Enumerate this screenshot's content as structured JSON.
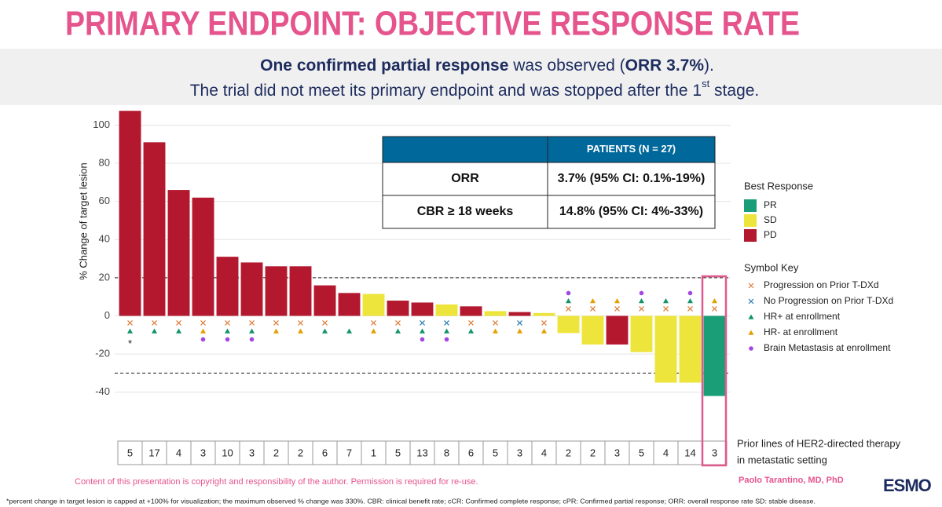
{
  "header": {
    "title": "PRIMARY ENDPOINT: OBJECTIVE RESPONSE RATE",
    "subtitle": {
      "line1": [
        "One confirmed partial response",
        " was observed (",
        "ORR 3.7%",
        ")."
      ],
      "line2": [
        "The trial did not meet its primary endpoint and was stopped after the 1",
        "st",
        " stage."
      ]
    }
  },
  "chart_data": {
    "type": "bar",
    "y_label": "% Change of target lesion",
    "ylim": [
      -50,
      108
    ],
    "yticks": [
      -40,
      -20,
      0,
      20,
      40,
      60,
      80,
      100
    ],
    "grid": true,
    "reference_lines": [
      20,
      -30
    ],
    "values": [
      107.5,
      91,
      66,
      62,
      31,
      28,
      26,
      26,
      16,
      12,
      11.5,
      8,
      7,
      6,
      5,
      2.5,
      2,
      1.5,
      -9,
      -15,
      -15,
      -19,
      -35,
      -35,
      -42
    ],
    "responses": [
      "PD",
      "PD",
      "PD",
      "PD",
      "PD",
      "PD",
      "PD",
      "PD",
      "PD",
      "PD",
      "SD",
      "PD",
      "PD",
      "SD",
      "PD",
      "SD",
      "PD",
      "SD",
      "SD",
      "SD",
      "PD",
      "SD",
      "SD",
      "SD",
      "PR"
    ],
    "cap_marker": "*",
    "prior_lines": [
      5,
      17,
      4,
      3,
      10,
      3,
      2,
      2,
      6,
      7,
      1,
      5,
      13,
      8,
      6,
      5,
      3,
      4,
      2,
      2,
      3,
      5,
      4,
      14,
      3
    ],
    "prior_lines_label": [
      "Prior lines of HER2-directed therapy",
      "in metastatic setting"
    ],
    "best_response": {
      "title": "Best Response",
      "items": [
        {
          "name": "PR",
          "color": "#1a9e77"
        },
        {
          "name": "SD",
          "color": "#ede53c"
        },
        {
          "name": "PD",
          "color": "#b3182f"
        }
      ]
    },
    "symbol_key": {
      "title": "Symbol Key",
      "items": [
        {
          "name": "Progression on Prior T-DXd",
          "shape": "cross",
          "color": "#e07b39",
          "patients": [
            true,
            true,
            true,
            true,
            true,
            true,
            true,
            true,
            true,
            false,
            true,
            true,
            false,
            false,
            true,
            true,
            false,
            true,
            true,
            true,
            true,
            true,
            true,
            true,
            true
          ]
        },
        {
          "name": "No Progression on Prior T-DXd",
          "shape": "cross",
          "color": "#2a7bb5",
          "patients": [
            false,
            false,
            false,
            false,
            false,
            false,
            false,
            false,
            false,
            false,
            false,
            false,
            true,
            true,
            false,
            false,
            true,
            false,
            false,
            false,
            false,
            false,
            false,
            false,
            false
          ]
        },
        {
          "name": "HR+ at enrollment",
          "shape": "triangle",
          "color": "#12936e",
          "patients": [
            true,
            true,
            true,
            false,
            true,
            true,
            false,
            false,
            true,
            true,
            false,
            true,
            true,
            true,
            true,
            false,
            false,
            false,
            true,
            false,
            false,
            true,
            true,
            true,
            false
          ]
        },
        {
          "name": "HR- at enrollment",
          "shape": "triangle",
          "color": "#e69f00",
          "patients": [
            false,
            false,
            false,
            true,
            false,
            false,
            true,
            true,
            false,
            false,
            true,
            false,
            false,
            false,
            false,
            true,
            true,
            true,
            false,
            true,
            true,
            false,
            false,
            false,
            true
          ]
        },
        {
          "name": "Brain Metastasis at enrollment",
          "shape": "dot",
          "color": "#a347e0",
          "patients": [
            false,
            false,
            false,
            true,
            true,
            true,
            false,
            false,
            false,
            false,
            false,
            false,
            true,
            true,
            false,
            false,
            false,
            false,
            true,
            false,
            false,
            true,
            false,
            true,
            false
          ]
        }
      ]
    }
  },
  "inset_table": {
    "column_header": "PATIENTS (N = 27)",
    "rows": [
      [
        "ORR",
        "3.7% (95% CI: 0.1%-19%)"
      ],
      [
        "CBR ≥ 18 weeks",
        "14.8% (95% CI: 4%-33%)"
      ]
    ]
  },
  "footer": {
    "copyright": "Content of this presentation is copyright and responsibility of the author. Permission is required for re-use.",
    "author": "Paolo Tarantino, MD, PhD",
    "footnote": "*percent change in target lesion is capped at +100% for visualization; the maximum observed % change was 330%. CBR: clinical benefit rate; cCR: Confirmed complete response; cPR: Confirmed partial response; ORR: overall response rate SD: stable disease.",
    "logo": "ESMO"
  }
}
